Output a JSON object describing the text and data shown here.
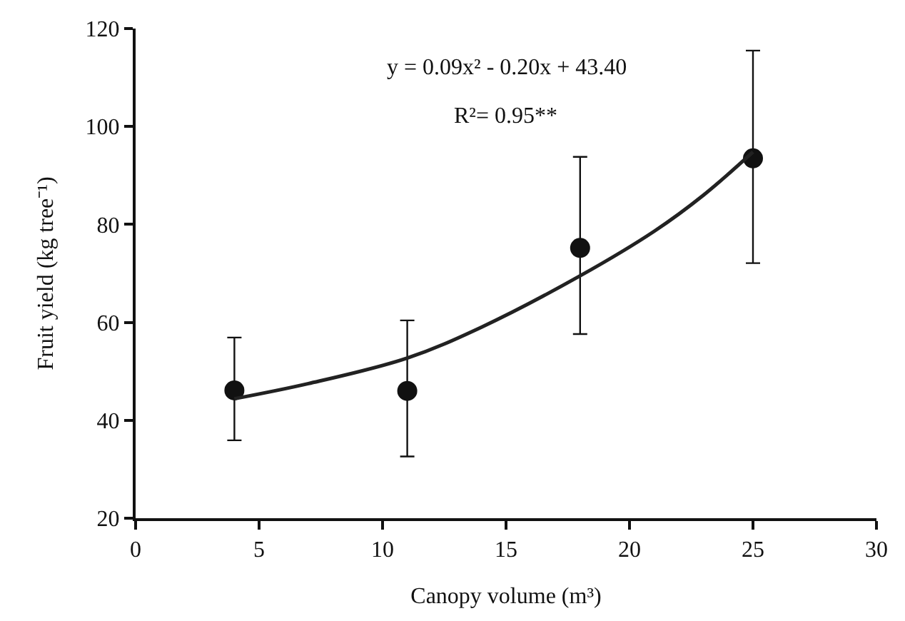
{
  "chart_data": {
    "type": "scatter",
    "xlabel": "Canopy volume (m³)",
    "ylabel": "Fruit yield (kg tree⁻¹)",
    "annotations": [
      "y = 0.09x² - 0.20x + 43.40",
      "R²= 0.95**"
    ],
    "x": [
      4,
      11,
      18,
      25
    ],
    "series": [
      {
        "color": "#111111",
        "marker": "circle",
        "values": [
          46.1,
          46,
          75.2,
          93.5
        ],
        "errors": [
          [
            35.9,
            56.9
          ],
          [
            32.6,
            60.4
          ],
          [
            57.6,
            93.8
          ],
          [
            72.1,
            115.5
          ]
        ]
      },
      {
        "type": "line",
        "color": "#222222",
        "marker": "none",
        "line_style": "solid",
        "x": [
          4,
          7,
          11,
          14,
          18,
          21,
          23,
          25
        ],
        "values": [
          44.4,
          47.5,
          52.7,
          59,
          69.5,
          78.6,
          86,
          94.8
        ]
      }
    ],
    "xlim": [
      0,
      30
    ],
    "xticks": [
      0,
      5,
      10,
      15,
      20,
      25,
      30
    ],
    "ylim": [
      20,
      120
    ],
    "yticks": [
      20,
      40,
      60,
      80,
      100,
      120
    ],
    "grid": false
  }
}
